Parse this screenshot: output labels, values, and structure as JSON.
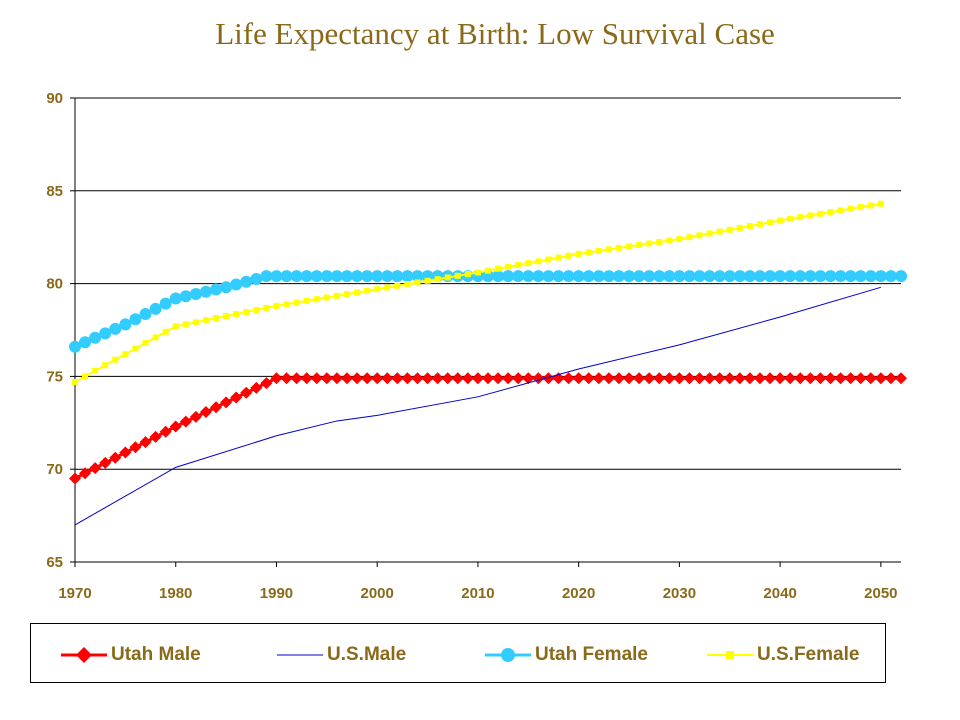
{
  "chart_data": {
    "type": "line",
    "title": "Life Expectancy at Birth: Low Survival Case",
    "xlabel": "",
    "ylabel": "",
    "xlim": [
      1970,
      2052
    ],
    "ylim": [
      65,
      90
    ],
    "x_ticks": [
      "1970",
      "1980",
      "1990",
      "2000",
      "2010",
      "2020",
      "2030",
      "2040",
      "2050"
    ],
    "y_ticks": [
      "65",
      "70",
      "75",
      "80",
      "85",
      "90"
    ],
    "grid": "horizontal",
    "legend_position": "bottom",
    "series": [
      {
        "name": "Utah Male",
        "color": "#ff0000",
        "marker": "diamond",
        "points": [
          [
            1970,
            69.5
          ],
          [
            1980,
            72.3
          ],
          [
            1990,
            74.9
          ],
          [
            2052,
            74.9
          ]
        ]
      },
      {
        "name": "U.S.Male",
        "color": "#0000cc",
        "marker": "none",
        "points": [
          [
            1970,
            67.0
          ],
          [
            1980,
            70.1
          ],
          [
            1990,
            71.8
          ],
          [
            1996,
            72.6
          ],
          [
            2000,
            72.9
          ],
          [
            2010,
            73.9
          ],
          [
            2020,
            75.4
          ],
          [
            2030,
            76.7
          ],
          [
            2040,
            78.2
          ],
          [
            2050,
            79.8
          ]
        ]
      },
      {
        "name": "Utah Female",
        "color": "#33ccff",
        "marker": "circle",
        "points": [
          [
            1970,
            76.6
          ],
          [
            1975,
            77.8
          ],
          [
            1980,
            79.2
          ],
          [
            1985,
            79.8
          ],
          [
            1989,
            80.4
          ],
          [
            2052,
            80.4
          ]
        ]
      },
      {
        "name": "U.S.Female",
        "color": "#ffff00",
        "marker": "square",
        "points": [
          [
            1970,
            74.7
          ],
          [
            1975,
            76.2
          ],
          [
            1980,
            77.7
          ],
          [
            1990,
            78.8
          ],
          [
            2000,
            79.7
          ],
          [
            2010,
            80.6
          ],
          [
            2020,
            81.6
          ],
          [
            2030,
            82.4
          ],
          [
            2040,
            83.4
          ],
          [
            2050,
            84.3
          ]
        ]
      }
    ]
  }
}
